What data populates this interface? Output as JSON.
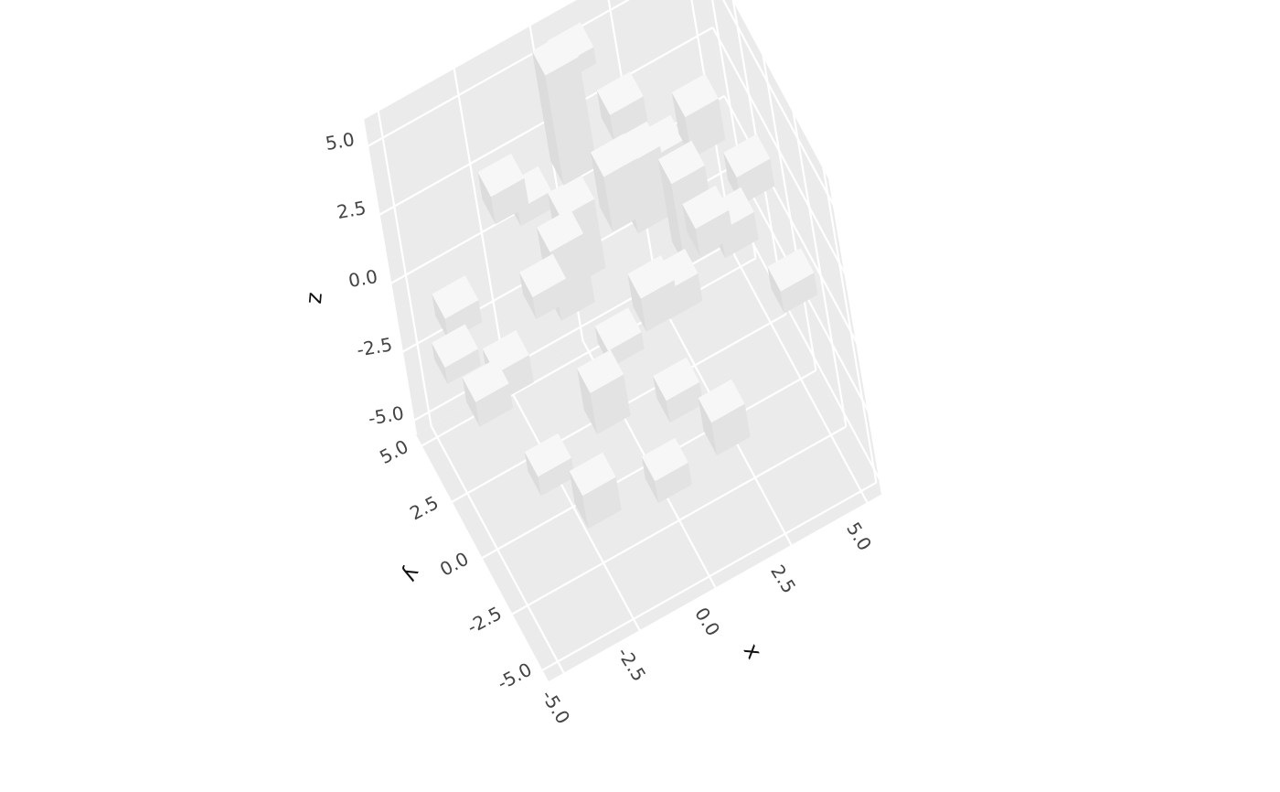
{
  "chart_data": {
    "type": "bar3d",
    "xlabel": "x",
    "ylabel": "y",
    "zlabel": "z",
    "xlim": [
      -5.5,
      5.5
    ],
    "ylim": [
      -5.5,
      5.5
    ],
    "zlim": [
      -5.5,
      6.0
    ],
    "ticks": [
      -5.0,
      -2.5,
      0.0,
      2.5,
      5.0
    ],
    "tick_labels": [
      "-5.0",
      "-2.5",
      "0.0",
      "2.5",
      "5.0"
    ],
    "grid": true,
    "colors": {
      "pane": "#ebebeb",
      "grid": "#ffffff",
      "bar_top": "#f7f7f7",
      "bar_side": "#e3e3e3",
      "bar_side_dark": "#dcdcdc"
    },
    "bars": [
      {
        "x": -5,
        "y": 1,
        "z": 0.5,
        "h": 0.6
      },
      {
        "x": -4,
        "y": 2,
        "z": -2.5,
        "h": 0.9
      },
      {
        "x": -4,
        "y": 4,
        "z": -1.0,
        "h": 0.8
      },
      {
        "x": -3,
        "y": 0,
        "z": -4.0,
        "h": 0.7
      },
      {
        "x": -3,
        "y": 3,
        "z": -3.0,
        "h": 1.0
      },
      {
        "x": -2,
        "y": 1,
        "z": 1.0,
        "h": 0.8
      },
      {
        "x": -2,
        "y": -1,
        "z": -5.0,
        "h": 1.2
      },
      {
        "x": -2,
        "y": 4,
        "z": 2.0,
        "h": 1.0
      },
      {
        "x": -1,
        "y": 2,
        "z": -0.5,
        "h": 2.5
      },
      {
        "x": -1,
        "y": 0,
        "z": -3.0,
        "h": 1.5
      },
      {
        "x": -1,
        "y": 5,
        "z": 0.5,
        "h": 0.6
      },
      {
        "x": 0,
        "y": 3,
        "z": 3.0,
        "h": 4.0
      },
      {
        "x": 0,
        "y": 1,
        "z": -2.0,
        "h": 0.6
      },
      {
        "x": 0,
        "y": -2,
        "z": -4.5,
        "h": 0.8
      },
      {
        "x": 0,
        "y": 4,
        "z": -1.5,
        "h": 2.5
      },
      {
        "x": 1,
        "y": 2,
        "z": 1.5,
        "h": 2.0
      },
      {
        "x": 1,
        "y": 0,
        "z": -0.5,
        "h": 1.2
      },
      {
        "x": 1,
        "y": 5,
        "z": 4.5,
        "h": 0.6
      },
      {
        "x": 1,
        "y": -1,
        "z": -3.0,
        "h": 0.8
      },
      {
        "x": 2,
        "y": 3,
        "z": 0.0,
        "h": 2.5
      },
      {
        "x": 2,
        "y": 1,
        "z": -1.5,
        "h": 1.0
      },
      {
        "x": 2,
        "y": -2,
        "z": -4.0,
        "h": 1.2
      },
      {
        "x": 2,
        "y": 4,
        "z": 2.5,
        "h": 1.0
      },
      {
        "x": 3,
        "y": 2,
        "z": -1.0,
        "h": 3.0
      },
      {
        "x": 3,
        "y": 0,
        "z": 1.0,
        "h": 1.0
      },
      {
        "x": 3,
        "y": 4,
        "z": 0.5,
        "h": 0.8
      },
      {
        "x": 4,
        "y": 3,
        "z": 1.5,
        "h": 1.5
      },
      {
        "x": 4,
        "y": 1,
        "z": -0.5,
        "h": 1.0
      },
      {
        "x": 5,
        "y": 2,
        "z": 0.0,
        "h": 1.0
      },
      {
        "x": 5,
        "y": -1,
        "z": -1.5,
        "h": 0.8
      }
    ]
  }
}
